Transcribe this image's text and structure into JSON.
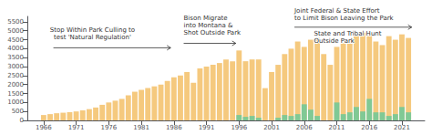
{
  "chart_data": {
    "type": "bar",
    "x": [
      1966,
      1967,
      1968,
      1969,
      1970,
      1971,
      1972,
      1973,
      1974,
      1975,
      1976,
      1977,
      1978,
      1979,
      1980,
      1981,
      1982,
      1983,
      1984,
      1985,
      1986,
      1987,
      1988,
      1989,
      1990,
      1991,
      1992,
      1993,
      1994,
      1995,
      1996,
      1997,
      1998,
      1999,
      2000,
      2001,
      2002,
      2003,
      2004,
      2005,
      2006,
      2007,
      2008,
      2009,
      2010,
      2011,
      2012,
      2013,
      2014,
      2015,
      2016,
      2017,
      2018,
      2019,
      2020,
      2021,
      2022
    ],
    "series": [
      {
        "color": "#F5C97E",
        "values": [
          300,
          350,
          400,
          430,
          460,
          500,
          560,
          630,
          720,
          870,
          1000,
          1100,
          1200,
          1400,
          1600,
          1700,
          1800,
          1900,
          2000,
          2200,
          2400,
          2500,
          2700,
          2100,
          2900,
          3000,
          3100,
          3200,
          3400,
          3300,
          3900,
          3300,
          3400,
          3400,
          1800,
          2700,
          3100,
          3700,
          4000,
          4400,
          4100,
          4500,
          4600,
          3700,
          3100,
          4100,
          4300,
          4400,
          4800,
          4900,
          4900,
          4400,
          4200,
          4700,
          4500,
          4800,
          4600
        ]
      },
      {
        "color": "#80C995",
        "values": [
          0,
          0,
          0,
          0,
          0,
          0,
          0,
          0,
          0,
          0,
          0,
          0,
          0,
          0,
          0,
          0,
          0,
          0,
          0,
          0,
          0,
          0,
          0,
          0,
          0,
          0,
          0,
          0,
          0,
          0,
          300,
          200,
          250,
          150,
          0,
          0,
          150,
          300,
          250,
          350,
          900,
          600,
          250,
          0,
          0,
          1000,
          350,
          450,
          750,
          500,
          1200,
          450,
          450,
          250,
          350,
          750,
          450
        ]
      }
    ],
    "stacked": false,
    "xlim": [
      1963.5,
      2024.5
    ],
    "xticks": [
      1966,
      1971,
      1976,
      1981,
      1986,
      1991,
      1996,
      2001,
      2006,
      2011,
      2016,
      2021
    ],
    "ylim": [
      0,
      5800
    ],
    "yticks": [
      0,
      500,
      1000,
      1500,
      2000,
      2500,
      3000,
      3500,
      4000,
      4500,
      5000,
      5500
    ],
    "grid": false,
    "annotations": [
      "Stop Within Park Culling to\ntest 'Natural Regulation'",
      "Bison Migrate\ninto Montana &\nShot Outside Park",
      "Joint Federal & State Effort\nto Limit Bison Leaving the Park",
      "State and Tribal Hunt\nOutside Park"
    ]
  }
}
